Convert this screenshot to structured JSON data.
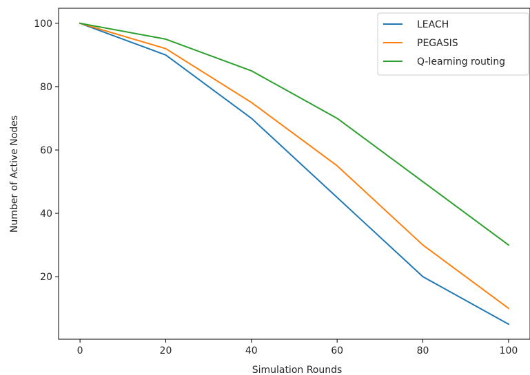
{
  "chart_data": {
    "type": "line",
    "title": "",
    "xlabel": "Simulation Rounds",
    "ylabel": "Number of Active Nodes",
    "x": [
      0,
      20,
      40,
      60,
      80,
      100
    ],
    "xlim": [
      -5,
      105
    ],
    "ylim": [
      0.25,
      104.75
    ],
    "xticks": [
      "0",
      "20",
      "40",
      "60",
      "80",
      "100"
    ],
    "yticks": [
      "20",
      "40",
      "60",
      "80",
      "100"
    ],
    "grid": false,
    "legend_position": "top-right",
    "series": [
      {
        "name": "LEACH",
        "color": "#1f77b4",
        "values": [
          100,
          90,
          70,
          45,
          20,
          5
        ]
      },
      {
        "name": "PEGASIS",
        "color": "#ff7f0e",
        "values": [
          100,
          92,
          75,
          55,
          30,
          10
        ]
      },
      {
        "name": "Q-learning routing",
        "color": "#2ca02c",
        "values": [
          100,
          95,
          85,
          70,
          50,
          30
        ]
      }
    ]
  }
}
